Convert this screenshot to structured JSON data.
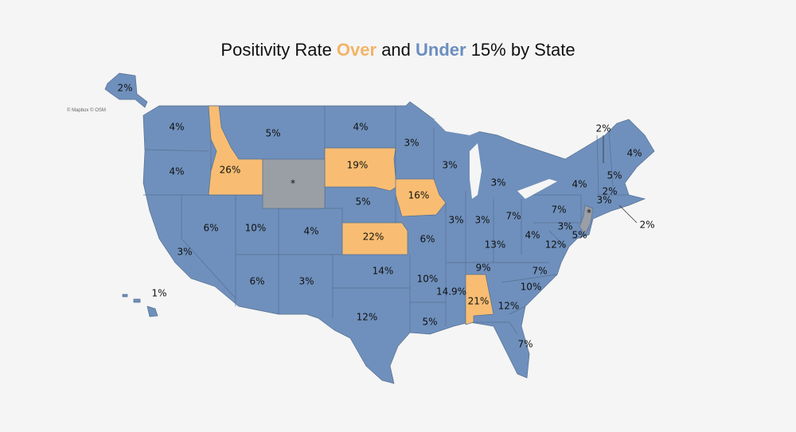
{
  "title": {
    "pre": "Positivity Rate ",
    "over": "Over",
    "mid": " and ",
    "under": "Under",
    "post": " 15% by State"
  },
  "attribution": "© Mapbox © OSM",
  "colors": {
    "under": "#6f90bc",
    "over": "#f8bd72",
    "no_data": "#9a9fa5",
    "border": "#566f93",
    "background": "#f5f5f5"
  },
  "labels": [
    {
      "text": "4%",
      "cat": "under"
    },
    {
      "text": "4%",
      "cat": "under"
    },
    {
      "text": "26%",
      "cat": "over"
    },
    {
      "text": "5%",
      "cat": "under"
    },
    {
      "text": "*",
      "cat": "na"
    },
    {
      "text": "4%",
      "cat": "under"
    },
    {
      "text": "19%",
      "cat": "over"
    },
    {
      "text": "3%",
      "cat": "under"
    },
    {
      "text": "3%",
      "cat": "under"
    },
    {
      "text": "3%",
      "cat": "under"
    },
    {
      "text": "16%",
      "cat": "over"
    },
    {
      "text": "5%",
      "cat": "under"
    },
    {
      "text": "6%",
      "cat": "under"
    },
    {
      "text": "3%",
      "cat": "under"
    },
    {
      "text": "10%",
      "cat": "under"
    },
    {
      "text": "4%",
      "cat": "under"
    },
    {
      "text": "22%",
      "cat": "over"
    },
    {
      "text": "6%",
      "cat": "under"
    },
    {
      "text": "3%",
      "cat": "under"
    },
    {
      "text": "3%",
      "cat": "under"
    },
    {
      "text": "7%",
      "cat": "under"
    },
    {
      "text": "13%",
      "cat": "under"
    },
    {
      "text": "4%",
      "cat": "under"
    },
    {
      "text": "12%",
      "cat": "under"
    },
    {
      "text": "7%",
      "cat": "under"
    },
    {
      "text": "4%",
      "cat": "under"
    },
    {
      "text": "2%",
      "cat": "under"
    },
    {
      "text": "5%",
      "cat": "under"
    },
    {
      "text": "4%",
      "cat": "under"
    },
    {
      "text": "2%",
      "cat": "under"
    },
    {
      "text": "3%",
      "cat": "under"
    },
    {
      "text": "2%",
      "cat": "under"
    },
    {
      "text": "*",
      "cat": "na"
    },
    {
      "text": "3%",
      "cat": "under"
    },
    {
      "text": "5%",
      "cat": "under"
    },
    {
      "text": "6%",
      "cat": "under"
    },
    {
      "text": "3%",
      "cat": "under"
    },
    {
      "text": "14%",
      "cat": "under"
    },
    {
      "text": "12%",
      "cat": "under"
    },
    {
      "text": "10%",
      "cat": "under"
    },
    {
      "text": "5%",
      "cat": "under"
    },
    {
      "text": "14.9%",
      "cat": "under"
    },
    {
      "text": "21%",
      "cat": "over"
    },
    {
      "text": "9%",
      "cat": "under"
    },
    {
      "text": "7%",
      "cat": "under"
    },
    {
      "text": "10%",
      "cat": "under"
    },
    {
      "text": "12%",
      "cat": "under"
    },
    {
      "text": "7%",
      "cat": "under"
    },
    {
      "text": "2%",
      "cat": "under"
    },
    {
      "text": "1%",
      "cat": "under"
    }
  ]
}
